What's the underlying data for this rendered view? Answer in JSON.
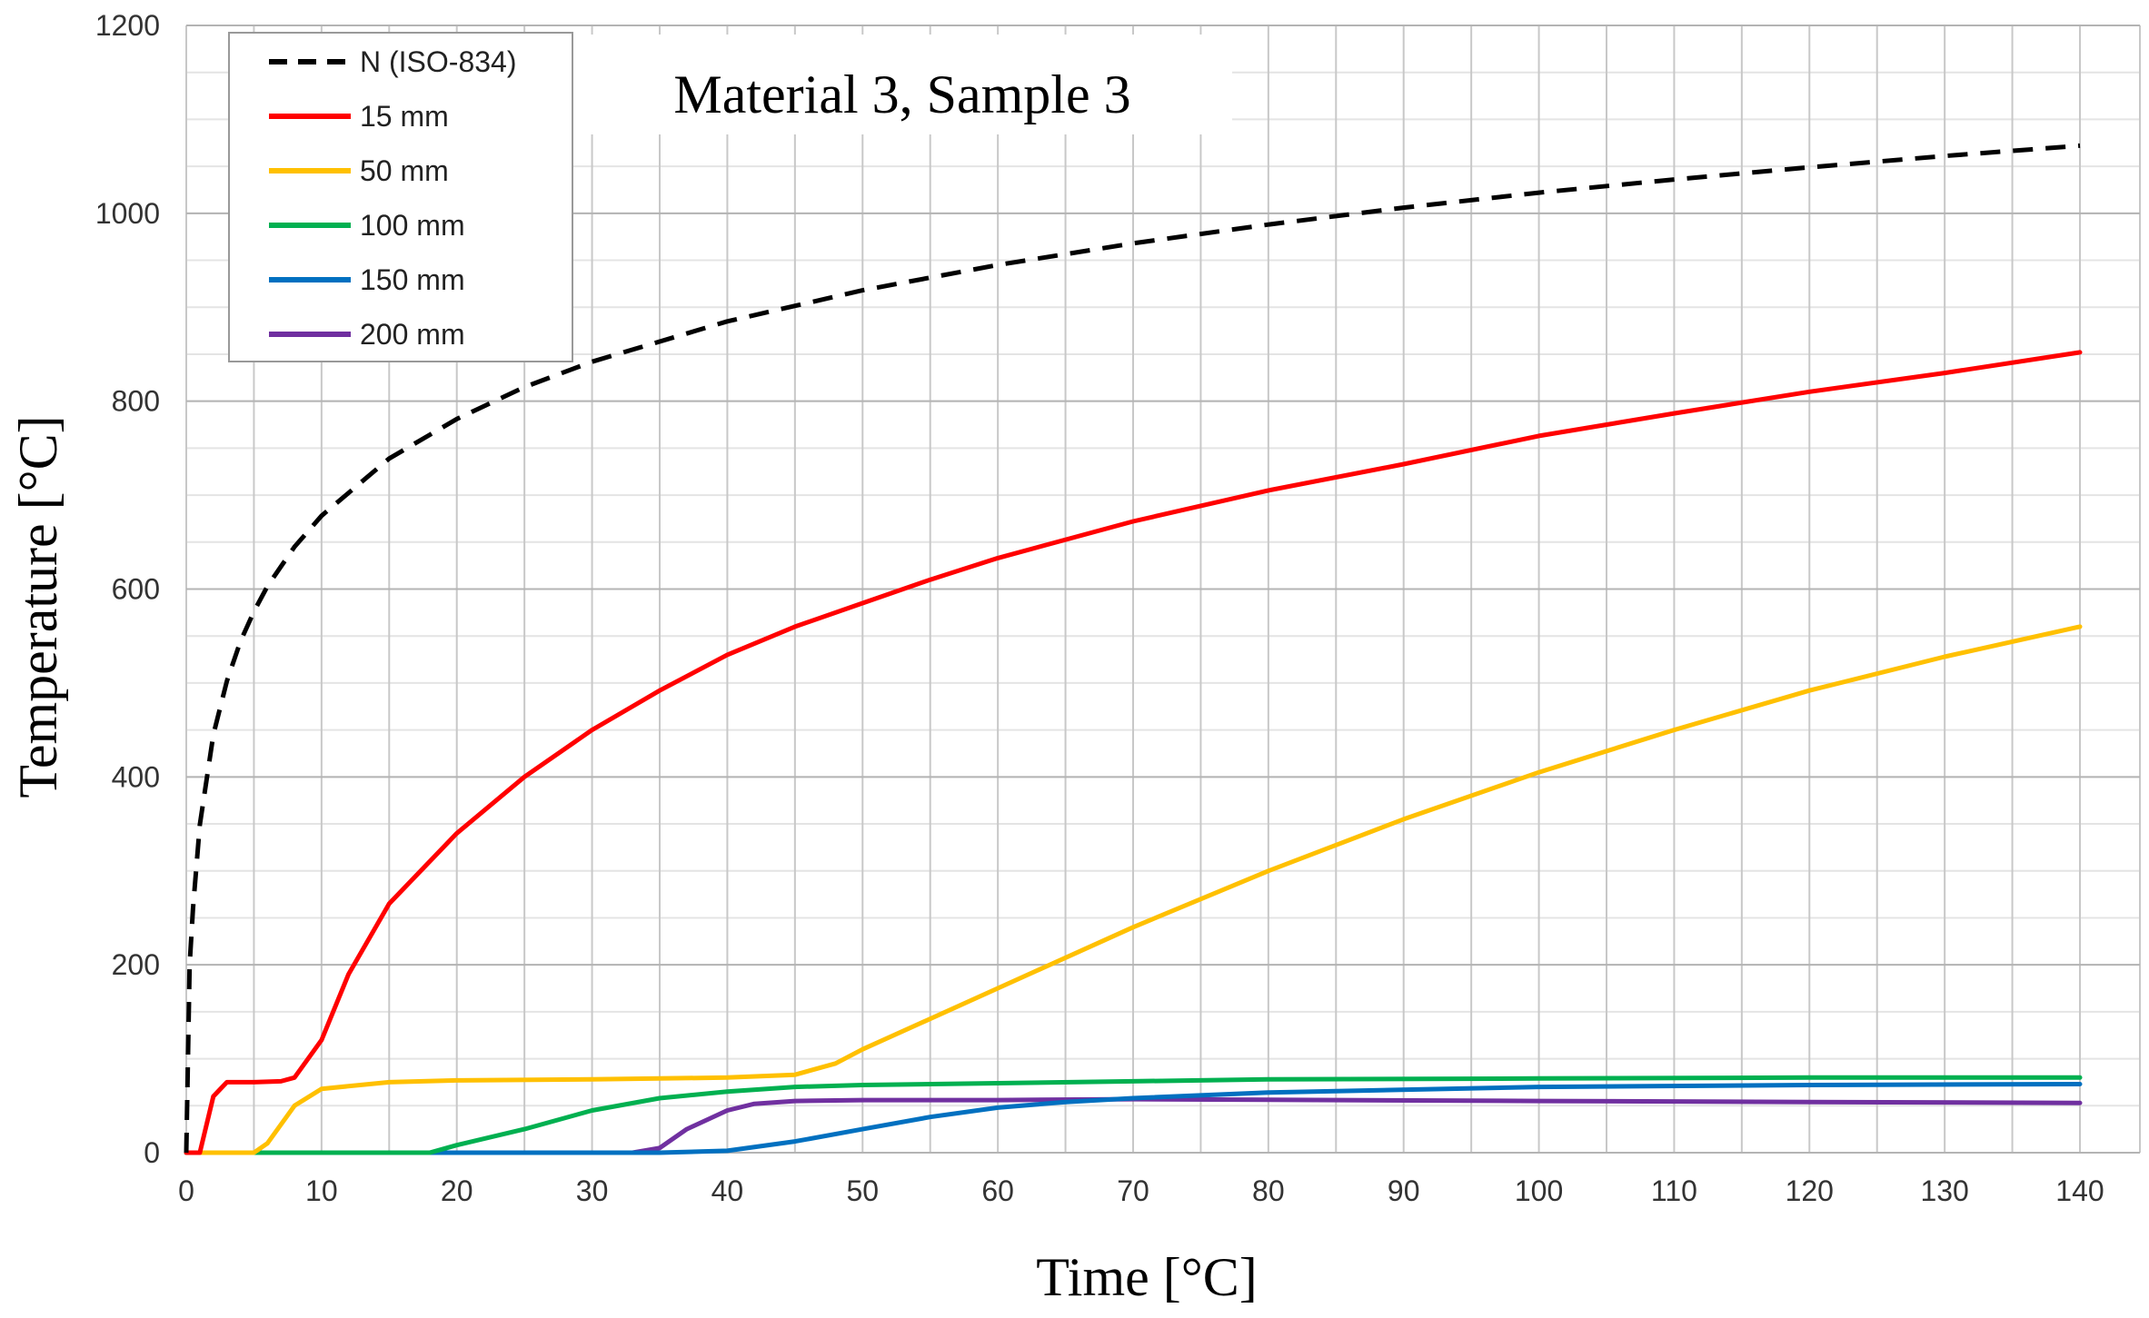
{
  "chart_data": {
    "type": "line",
    "title": "Material 3, Sample 3",
    "xlabel": "Time [°C]",
    "ylabel": "Temperature [°C]",
    "xlim": [
      0,
      140
    ],
    "ylim": [
      0,
      1200
    ],
    "xticks": [
      0,
      10,
      20,
      30,
      40,
      50,
      60,
      70,
      80,
      90,
      100,
      110,
      120,
      130,
      140
    ],
    "yticks": [
      0,
      200,
      400,
      600,
      800,
      1000,
      1200
    ],
    "grid": true,
    "legend_position": "top-left",
    "series": [
      {
        "name": "N (ISO-834)",
        "color": "#000000",
        "dash": true,
        "x": [
          0,
          0.25,
          0.5,
          1,
          2,
          3,
          4,
          5,
          6,
          8,
          10,
          15,
          20,
          25,
          30,
          40,
          50,
          60,
          70,
          80,
          90,
          100,
          110,
          120,
          130,
          140
        ],
        "y": [
          0,
          200,
          260,
          349,
          445,
          502,
          544,
          576,
          603,
          645,
          678,
          739,
          781,
          815,
          842,
          885,
          918,
          945,
          968,
          988,
          1006,
          1022,
          1036,
          1049,
          1061,
          1072
        ]
      },
      {
        "name": "15 mm",
        "color": "#ff0000",
        "x": [
          0,
          1,
          2,
          3,
          4,
          5,
          7,
          8,
          10,
          12,
          15,
          20,
          25,
          30,
          35,
          40,
          45,
          50,
          55,
          60,
          70,
          80,
          90,
          100,
          110,
          120,
          130,
          140
        ],
        "y": [
          0,
          0,
          60,
          75,
          75,
          75,
          76,
          80,
          120,
          190,
          265,
          340,
          400,
          450,
          492,
          530,
          560,
          585,
          610,
          633,
          672,
          705,
          733,
          763,
          787,
          810,
          830,
          852
        ]
      },
      {
        "name": "50 mm",
        "color": "#ffc000",
        "x": [
          0,
          5,
          6,
          8,
          10,
          15,
          20,
          30,
          40,
          45,
          48,
          50,
          60,
          70,
          80,
          90,
          100,
          110,
          120,
          130,
          140
        ],
        "y": [
          0,
          0,
          10,
          50,
          68,
          75,
          77,
          78,
          80,
          83,
          95,
          110,
          175,
          240,
          300,
          355,
          405,
          450,
          492,
          528,
          560
        ]
      },
      {
        "name": "100 mm",
        "color": "#00b050",
        "x": [
          0,
          18,
          20,
          25,
          30,
          35,
          40,
          45,
          50,
          60,
          70,
          80,
          100,
          120,
          140
        ],
        "y": [
          0,
          0,
          8,
          25,
          45,
          58,
          65,
          70,
          72,
          74,
          76,
          78,
          79,
          80,
          80
        ]
      },
      {
        "name": "150 mm",
        "color": "#0070c0",
        "x": [
          0,
          35,
          40,
          45,
          50,
          55,
          60,
          65,
          70,
          80,
          100,
          120,
          140
        ],
        "y": [
          0,
          0,
          2,
          12,
          25,
          38,
          48,
          54,
          58,
          64,
          70,
          72,
          73
        ]
      },
      {
        "name": "200 mm",
        "color": "#7030a0",
        "x": [
          0,
          33,
          35,
          37,
          40,
          42,
          45,
          50,
          60,
          70,
          100,
          120,
          140
        ],
        "y": [
          0,
          0,
          5,
          25,
          45,
          52,
          55,
          56,
          56,
          57,
          55,
          54,
          53
        ]
      }
    ]
  }
}
